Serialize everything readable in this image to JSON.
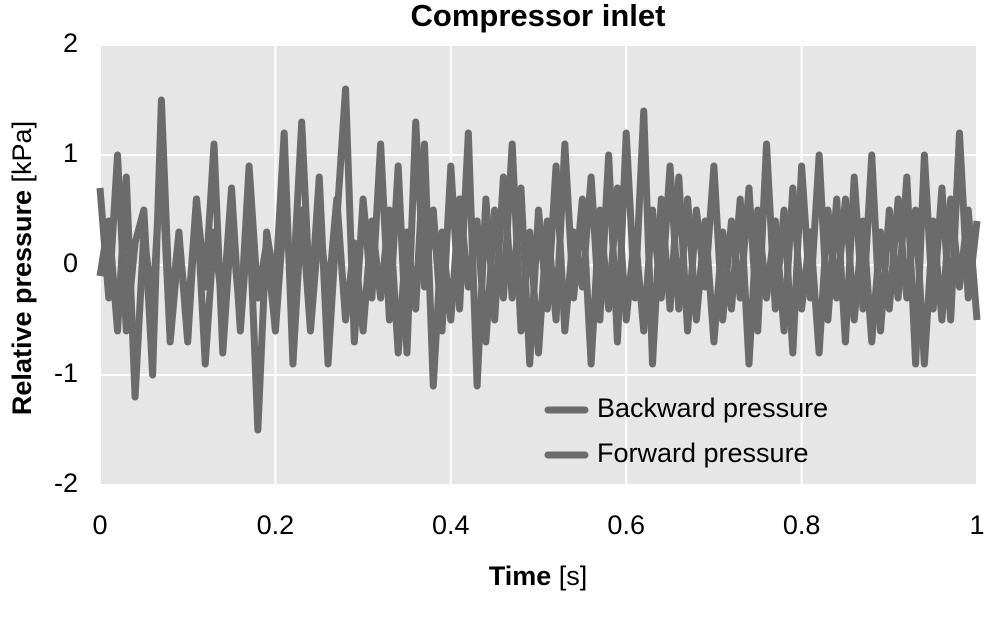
{
  "chart_data": {
    "type": "line",
    "title": "Compressor inlet",
    "xlabel": "Time",
    "xunit": "[s]",
    "ylabel": "Relative pressure",
    "yunit": "[kPa]",
    "x": [
      0,
      0.01,
      0.02,
      0.03,
      0.04,
      0.05,
      0.06,
      0.07,
      0.08,
      0.09,
      0.1,
      0.11,
      0.12,
      0.13,
      0.14,
      0.15,
      0.16,
      0.17,
      0.18,
      0.19,
      0.2,
      0.21,
      0.22,
      0.23,
      0.24,
      0.25,
      0.26,
      0.27,
      0.28,
      0.29,
      0.3,
      0.31,
      0.32,
      0.33,
      0.34,
      0.35,
      0.36,
      0.37,
      0.38,
      0.39,
      0.4,
      0.41,
      0.42,
      0.43,
      0.44,
      0.45,
      0.46,
      0.47,
      0.48,
      0.49,
      0.5,
      0.51,
      0.52,
      0.53,
      0.54,
      0.55,
      0.56,
      0.57,
      0.58,
      0.59,
      0.6,
      0.61,
      0.62,
      0.63,
      0.64,
      0.65,
      0.66,
      0.67,
      0.68,
      0.69,
      0.7,
      0.71,
      0.72,
      0.73,
      0.74,
      0.75,
      0.76,
      0.77,
      0.78,
      0.79,
      0.8,
      0.81,
      0.82,
      0.83,
      0.84,
      0.85,
      0.86,
      0.87,
      0.88,
      0.89,
      0.9,
      0.91,
      0.92,
      0.93,
      0.94,
      0.95,
      0.96,
      0.97,
      0.98,
      0.99,
      1
    ],
    "series": [
      {
        "name": "Backward pressure",
        "color": "#6b6b6b",
        "values": [
          0.7,
          -0.3,
          1.0,
          -0.6,
          0.2,
          0.5,
          -1.0,
          1.5,
          -0.5,
          0.3,
          -0.7,
          0.6,
          -0.2,
          1.1,
          -0.8,
          0.4,
          -0.5,
          0.9,
          -0.3,
          0.2,
          -0.6,
          0.5,
          -0.2,
          1.3,
          -0.4,
          0.8,
          -0.9,
          0.4,
          1.6,
          -0.7,
          0.6,
          -0.3,
          1.1,
          -0.5,
          0.9,
          -0.8,
          1.3,
          -0.2,
          0.5,
          -0.6,
          0.9,
          -0.4,
          1.2,
          -1.1,
          0.6,
          -0.5,
          0.8,
          -0.3,
          0.7,
          -0.9,
          0.5,
          -0.4,
          0.9,
          -0.6,
          0.3,
          -0.2,
          0.8,
          -0.5,
          1.0,
          -0.7,
          1.2,
          -0.3,
          1.4,
          -0.9,
          0.6,
          -0.4,
          0.8,
          -0.6,
          0.5,
          -0.2,
          0.9,
          -0.5,
          0.4,
          -0.3,
          0.7,
          -0.6,
          1.1,
          -0.4,
          0.5,
          -0.8,
          0.9,
          -0.3,
          1.0,
          -0.5,
          0.6,
          -0.7,
          0.8,
          -0.4,
          1.0,
          -0.6,
          0.5,
          -0.3,
          0.8,
          -0.9,
          1.0,
          -0.4,
          0.7,
          -0.5,
          1.2,
          -0.3,
          0.4
        ]
      },
      {
        "name": "Forward pressure",
        "color": "#6b6b6b",
        "values": [
          -0.1,
          0.4,
          -0.6,
          0.8,
          -1.2,
          0.3,
          -0.4,
          1.0,
          -0.7,
          0.2,
          -0.5,
          0.6,
          -0.9,
          0.3,
          -0.4,
          0.7,
          -0.6,
          0.5,
          -1.5,
          0.3,
          -0.2,
          1.2,
          -0.9,
          0.5,
          -0.6,
          0.4,
          -0.3,
          0.6,
          -0.5,
          0.2,
          -0.6,
          0.4,
          -0.3,
          0.5,
          -0.8,
          0.3,
          -0.4,
          1.1,
          -1.1,
          0.3,
          -0.5,
          0.6,
          -0.2,
          0.4,
          -0.7,
          0.5,
          -0.3,
          1.1,
          -0.6,
          0.3,
          -0.8,
          0.4,
          -0.5,
          1.1,
          -0.3,
          0.6,
          -0.9,
          0.5,
          -0.4,
          0.7,
          -0.5,
          0.3,
          -0.6,
          0.5,
          -0.3,
          0.9,
          -0.4,
          0.6,
          -0.5,
          0.4,
          -0.7,
          0.3,
          -0.4,
          0.6,
          -0.9,
          0.5,
          -0.3,
          0.4,
          -0.6,
          0.7,
          -0.4,
          0.3,
          -0.8,
          0.5,
          -0.3,
          0.6,
          -0.5,
          0.4,
          -0.7,
          0.3,
          -0.4,
          0.6,
          -0.3,
          0.5,
          -0.9,
          0.4,
          -0.5,
          0.6,
          -0.2,
          0.5,
          -0.5
        ]
      }
    ],
    "xlim": [
      0,
      1
    ],
    "xticks": [
      0,
      0.2,
      0.4,
      0.6,
      0.8,
      1
    ],
    "ylim": [
      -2,
      2
    ],
    "yticks": [
      -2,
      -1,
      0,
      1,
      2
    ],
    "grid": true,
    "legend": "lower right"
  }
}
